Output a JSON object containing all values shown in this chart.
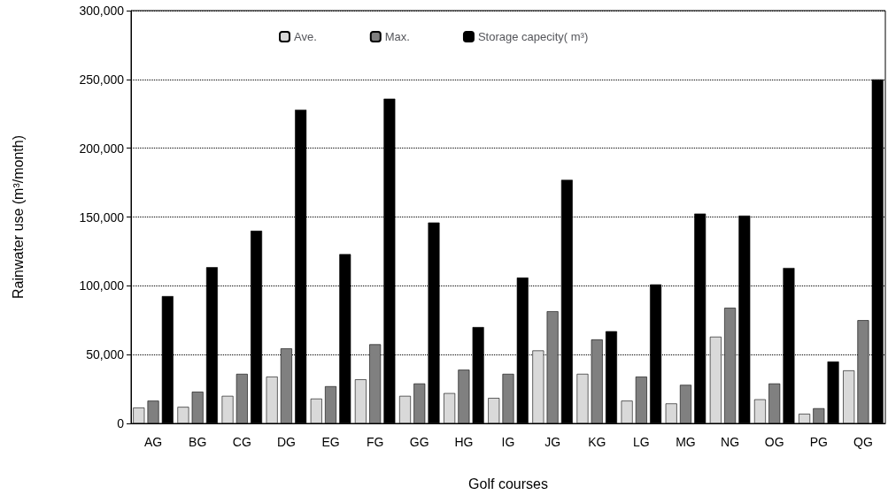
{
  "chart_data": {
    "type": "bar",
    "xlabel": "Golf courses",
    "ylabel": "Rainwater use (m³/month)",
    "categories": [
      "AG",
      "BG",
      "CG",
      "DG",
      "EG",
      "FG",
      "GG",
      "HG",
      "IG",
      "JG",
      "KG",
      "LG",
      "MG",
      "NG",
      "OG",
      "PG",
      "QG"
    ],
    "series": [
      {
        "name": "Ave.",
        "color": "#d9d9d9",
        "values": [
          11500,
          12000,
          20000,
          34000,
          18000,
          32000,
          20000,
          22000,
          18500,
          53000,
          36000,
          16500,
          14500,
          63000,
          17500,
          7000,
          38500
        ]
      },
      {
        "name": "Max.",
        "color": "#808080",
        "values": [
          16500,
          23000,
          36000,
          54500,
          27000,
          57500,
          29000,
          39000,
          36000,
          81500,
          61000,
          34000,
          28000,
          84000,
          29000,
          11000,
          75000
        ]
      },
      {
        "name": "Storage capecity( m³)",
        "color": "#000000",
        "values": [
          92500,
          113500,
          140000,
          228000,
          123000,
          236000,
          146000,
          70000,
          106000,
          177000,
          67000,
          101000,
          152500,
          151000,
          113000,
          45000,
          250000
        ]
      }
    ],
    "ylim": [
      0,
      300000
    ],
    "yticks": [
      0,
      {
        "value": 50000,
        "label": "50,000"
      },
      {
        "value": 100000,
        "label": "100,000"
      },
      {
        "value": 150000,
        "label": "150,000"
      },
      {
        "value": 200000,
        "label": "200,000"
      },
      {
        "value": 250000,
        "label": "250,000"
      },
      {
        "value": 300000,
        "label": "300,000"
      }
    ],
    "grid": "y",
    "legend": "top"
  }
}
